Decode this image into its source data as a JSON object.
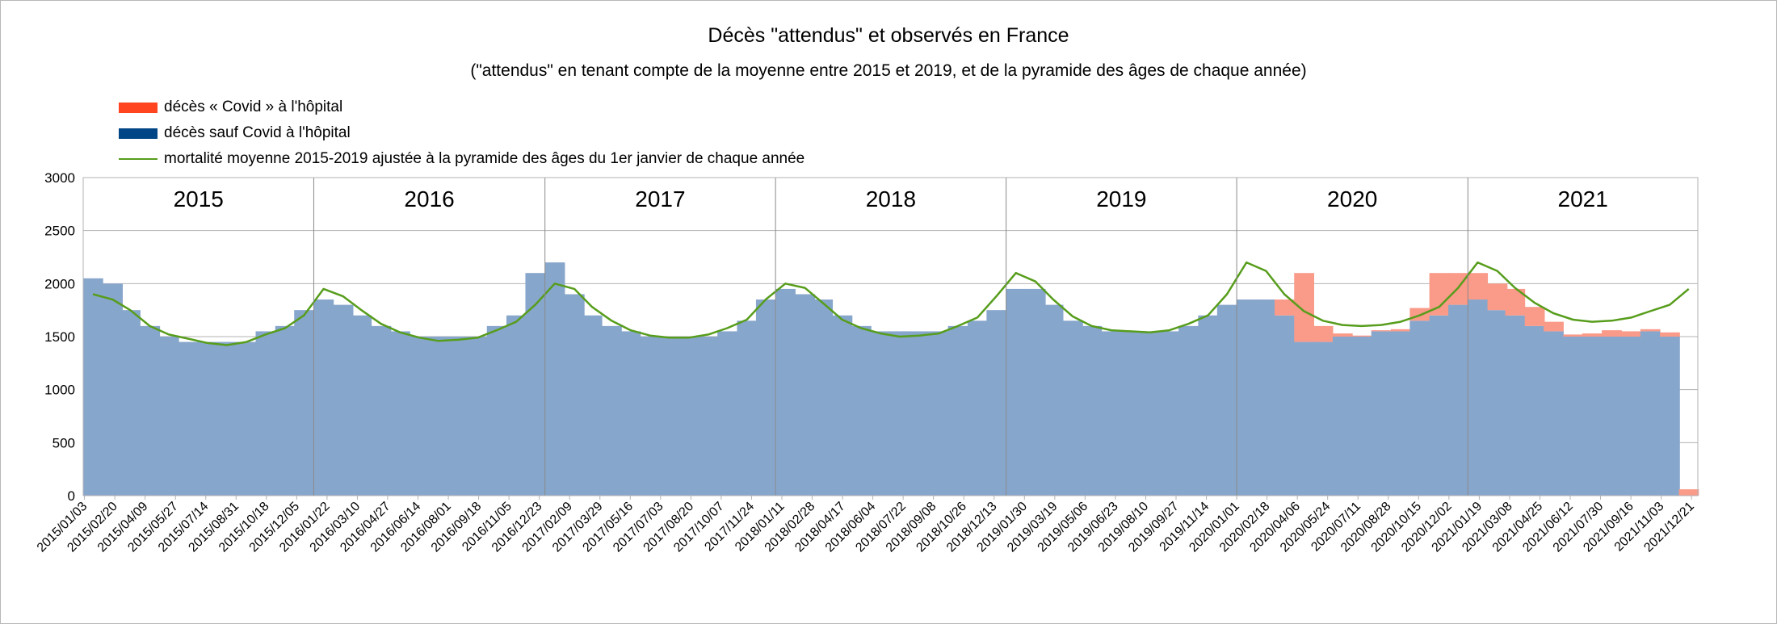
{
  "chart_data": {
    "type": "bar",
    "title": "Décès \"attendus\" et observés en France",
    "subtitle": "(\"attendus\" en tenant compte de la moyenne entre 2015 et 2019, et de la pyramide des âges de chaque année)",
    "legend_position": "top-left",
    "grid": true,
    "ylim": [
      0,
      3000
    ],
    "yticks": [
      "0",
      "500",
      "1000",
      "1500",
      "2000",
      "2500",
      "3000"
    ],
    "xlim": [
      "2015-01-01",
      "2021-12-31"
    ],
    "xticks": [
      "2015/01/03",
      "2015/02/20",
      "2015/04/09",
      "2015/05/27",
      "2015/07/14",
      "2015/08/31",
      "2015/10/18",
      "2015/12/05",
      "2016/01/22",
      "2016/03/10",
      "2016/04/27",
      "2016/06/14",
      "2016/08/01",
      "2016/09/18",
      "2016/11/05",
      "2016/12/23",
      "2017/02/09",
      "2017/03/29",
      "2017/05/16",
      "2017/07/03",
      "2017/08/20",
      "2017/10/07",
      "2017/11/24",
      "2018/01/11",
      "2018/02/28",
      "2018/04/17",
      "2018/06/04",
      "2018/07/22",
      "2018/09/08",
      "2018/10/26",
      "2018/12/13",
      "2019/01/30",
      "2019/03/19",
      "2019/05/06",
      "2019/06/23",
      "2019/08/10",
      "2019/09/27",
      "2019/11/14",
      "2020/01/01",
      "2020/02/18",
      "2020/04/06",
      "2020/05/24",
      "2020/07/11",
      "2020/08/28",
      "2020/10/15",
      "2020/12/02",
      "2021/01/19",
      "2021/03/08",
      "2021/04/25",
      "2021/06/12",
      "2021/07/30",
      "2021/09/16",
      "2021/11/03",
      "2021/12/21"
    ],
    "year_labels": [
      "2015",
      "2016",
      "2017",
      "2018",
      "2019",
      "2020",
      "2021"
    ],
    "x": [
      "2015-01-01",
      "2015-02-01",
      "2015-03-01",
      "2015-04-01",
      "2015-05-01",
      "2015-06-01",
      "2015-07-01",
      "2015-08-01",
      "2015-09-01",
      "2015-10-01",
      "2015-11-01",
      "2015-12-01",
      "2016-01-01",
      "2016-02-01",
      "2016-03-01",
      "2016-04-01",
      "2016-05-01",
      "2016-06-01",
      "2016-07-01",
      "2016-08-01",
      "2016-09-01",
      "2016-10-01",
      "2016-11-01",
      "2016-12-01",
      "2017-01-01",
      "2017-02-01",
      "2017-03-01",
      "2017-04-01",
      "2017-05-01",
      "2017-06-01",
      "2017-07-01",
      "2017-08-01",
      "2017-09-01",
      "2017-10-01",
      "2017-11-01",
      "2017-12-01",
      "2018-01-01",
      "2018-02-01",
      "2018-03-01",
      "2018-04-01",
      "2018-05-01",
      "2018-06-01",
      "2018-07-01",
      "2018-08-01",
      "2018-09-01",
      "2018-10-01",
      "2018-11-01",
      "2018-12-01",
      "2019-01-01",
      "2019-02-01",
      "2019-03-01",
      "2019-04-01",
      "2019-05-01",
      "2019-06-01",
      "2019-07-01",
      "2019-08-01",
      "2019-09-01",
      "2019-10-01",
      "2019-11-01",
      "2019-12-01",
      "2020-01-01",
      "2020-02-01",
      "2020-03-01",
      "2020-04-01",
      "2020-05-01",
      "2020-06-01",
      "2020-07-01",
      "2020-08-01",
      "2020-09-01",
      "2020-10-01",
      "2020-11-01",
      "2020-12-01",
      "2021-01-01",
      "2021-02-01",
      "2021-03-01",
      "2021-04-01",
      "2021-05-01",
      "2021-06-01",
      "2021-07-01",
      "2021-08-01",
      "2021-09-01",
      "2021-10-01",
      "2021-11-01",
      "2021-12-01"
    ],
    "series": [
      {
        "name": "décès « Covid » à l'hôpital",
        "color": "#ff4420",
        "values": [
          0,
          0,
          0,
          0,
          0,
          0,
          0,
          0,
          0,
          0,
          0,
          0,
          0,
          0,
          0,
          0,
          0,
          0,
          0,
          0,
          0,
          0,
          0,
          0,
          0,
          0,
          0,
          0,
          0,
          0,
          0,
          0,
          0,
          0,
          0,
          0,
          0,
          0,
          0,
          0,
          0,
          0,
          0,
          0,
          0,
          0,
          0,
          0,
          0,
          0,
          0,
          0,
          0,
          0,
          0,
          0,
          0,
          0,
          0,
          0,
          0,
          0,
          150,
          650,
          150,
          30,
          10,
          10,
          20,
          120,
          400,
          300,
          250,
          250,
          250,
          180,
          90,
          20,
          30,
          60,
          50,
          20,
          40,
          60
        ]
      },
      {
        "name": "décès sauf Covid à l'hôpital",
        "color": "#004586",
        "values": [
          2050,
          2000,
          1750,
          1600,
          1500,
          1450,
          1450,
          1450,
          1450,
          1550,
          1600,
          1750,
          1850,
          1800,
          1700,
          1600,
          1550,
          1500,
          1500,
          1500,
          1500,
          1600,
          1700,
          2100,
          2200,
          1900,
          1700,
          1600,
          1550,
          1500,
          1500,
          1500,
          1500,
          1550,
          1650,
          1850,
          1950,
          1900,
          1850,
          1700,
          1600,
          1550,
          1550,
          1550,
          1550,
          1600,
          1650,
          1750,
          1950,
          1950,
          1800,
          1650,
          1600,
          1550,
          1550,
          1550,
          1550,
          1600,
          1700,
          1800,
          1850,
          1850,
          1700,
          1450,
          1450,
          1500,
          1500,
          1550,
          1550,
          1650,
          1700,
          1800,
          1850,
          1750,
          1700,
          1600,
          1550,
          1500,
          1500,
          1500,
          1500,
          1550,
          1500,
          0
        ]
      },
      {
        "name": "mortalité moyenne 2015-2019 ajustée à la pyramide des âges du 1er janvier de chaque année",
        "color": "#579d1c",
        "values": [
          1900,
          1850,
          1750,
          1600,
          1520,
          1480,
          1440,
          1420,
          1450,
          1520,
          1580,
          1700,
          1950,
          1880,
          1750,
          1620,
          1540,
          1490,
          1460,
          1470,
          1490,
          1560,
          1640,
          1800,
          2000,
          1950,
          1780,
          1650,
          1560,
          1510,
          1490,
          1490,
          1520,
          1580,
          1660,
          1850,
          2000,
          1960,
          1820,
          1660,
          1580,
          1530,
          1500,
          1510,
          1530,
          1600,
          1680,
          1880,
          2100,
          2020,
          1850,
          1690,
          1600,
          1560,
          1550,
          1540,
          1560,
          1620,
          1700,
          1900,
          2200,
          2120,
          1900,
          1740,
          1650,
          1610,
          1600,
          1610,
          1640,
          1700,
          1780,
          1960,
          2200,
          2120,
          1960,
          1820,
          1720,
          1660,
          1640,
          1650,
          1680,
          1740,
          1800,
          1950
        ]
      }
    ]
  }
}
